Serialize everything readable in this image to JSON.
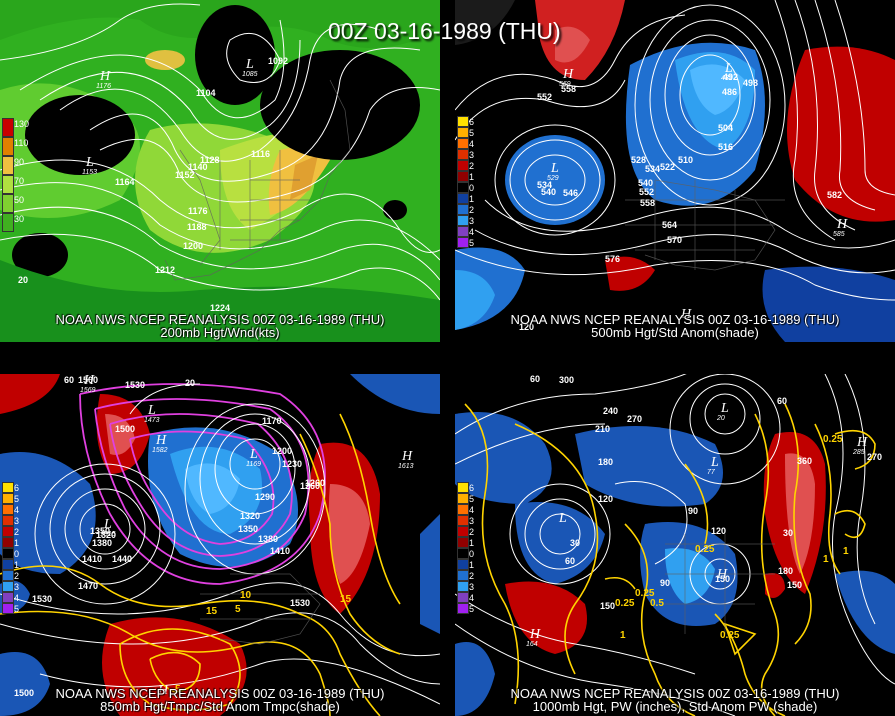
{
  "title": "00Z 03-16-1989 (THU)",
  "panels": [
    {
      "id": "p1",
      "header": "NOAA NWS NCEP REANALYSIS 00Z 03-16-1989 (THU)",
      "subtitle": "200mb Hgt/Wnd(kts)",
      "legend": [
        "130",
        "110",
        "90",
        "70",
        "50",
        "30"
      ],
      "legend_colors": [
        "#c80000",
        "#e08000",
        "#f0c040",
        "#b0e040",
        "#80d030",
        "#40b020"
      ],
      "contour_labels": [
        "1092",
        "1104",
        "1116",
        "1128",
        "1140",
        "1152",
        "1164",
        "1176",
        "1188",
        "1200",
        "1212",
        "1224",
        "20"
      ],
      "centers": [
        {
          "letter": "H",
          "value": "1176"
        },
        {
          "letter": "L",
          "value": "1153"
        },
        {
          "letter": "L",
          "value": "1085"
        }
      ]
    },
    {
      "id": "p2",
      "header": "NOAA NWS NCEP REANALYSIS 00Z 03-16-1989 (THU)",
      "subtitle": "500mb Hgt/Std Anom(shade)",
      "legend": [
        "6",
        "5",
        "4",
        "3",
        "2",
        "1",
        "0",
        "1",
        "2",
        "3",
        "4",
        "5"
      ],
      "legend_colors": [
        "#ffe000",
        "#ffb000",
        "#ff7000",
        "#e03000",
        "#c00000",
        "#900000",
        "#000000",
        "#1040a0",
        "#2070d0",
        "#30a0f0",
        "#8040c0",
        "#a020f0"
      ],
      "contour_labels": [
        "552",
        "558",
        "534",
        "540",
        "546",
        "528",
        "534",
        "522",
        "510",
        "504",
        "516",
        "492",
        "486",
        "498",
        "540",
        "552",
        "558",
        "564",
        "570",
        "576",
        "582",
        "120"
      ],
      "centers": [
        {
          "letter": "H",
          "value": "569"
        },
        {
          "letter": "L",
          "value": "529"
        },
        {
          "letter": "L",
          "value": "482"
        },
        {
          "letter": "H",
          "value": "585"
        },
        {
          "letter": "H",
          "value": ""
        }
      ]
    },
    {
      "id": "p3",
      "header": "NOAA NWS NCEP REANALYSIS 00Z 03-16-1989 (THU)",
      "subtitle": "850mb Hgt/Tmpc/Std Anom Tmpc(shade)",
      "legend": [
        "6",
        "5",
        "4",
        "3",
        "2",
        "1",
        "0",
        "1",
        "2",
        "3",
        "4",
        "5"
      ],
      "legend_colors": [
        "#ffe000",
        "#ffb000",
        "#ff7000",
        "#e03000",
        "#c00000",
        "#900000",
        "#000000",
        "#1040a0",
        "#2070d0",
        "#30a0f0",
        "#8040c0",
        "#a020f0"
      ],
      "contour_labels": [
        "60",
        "1500",
        "1530",
        "1500",
        "20",
        "1170",
        "1200",
        "1230",
        "1260",
        "1290",
        "1320",
        "1350",
        "1380",
        "1410",
        "1440",
        "1470",
        "1530",
        "1350",
        "1380",
        "1320",
        "1410",
        "10",
        "5",
        "15",
        "15",
        "5",
        "1500",
        "1530",
        "1260"
      ],
      "centers": [
        {
          "letter": "H",
          "value": "1569"
        },
        {
          "letter": "L",
          "value": "1473"
        },
        {
          "letter": "H",
          "value": "1582"
        },
        {
          "letter": "L",
          "value": "1169"
        },
        {
          "letter": "L",
          "value": "1315"
        },
        {
          "letter": "H",
          "value": "1613"
        },
        {
          "letter": "H",
          "value": ""
        }
      ]
    },
    {
      "id": "p4",
      "header": "NOAA NWS NCEP REANALYSIS 00Z 03-16-1989 (THU)",
      "subtitle": "1000mb Hgt, PW (inches), Std Anom PW (shade)",
      "legend": [
        "6",
        "5",
        "4",
        "3",
        "2",
        "1",
        "0",
        "1",
        "2",
        "3",
        "4",
        "5"
      ],
      "legend_colors": [
        "#ffe000",
        "#ffb000",
        "#ff7000",
        "#e03000",
        "#c00000",
        "#900000",
        "#000000",
        "#1040a0",
        "#2070d0",
        "#30a0f0",
        "#8040c0",
        "#a020f0"
      ],
      "contour_labels": [
        "60",
        "300",
        "240",
        "270",
        "210",
        "180",
        "120",
        "60",
        "30",
        "90",
        "120",
        "150",
        "180",
        "150",
        "0.25",
        "0.25",
        "0.25",
        "0.5",
        "1",
        "0.25",
        "150",
        "360",
        "270",
        "0.25",
        "1",
        "1",
        "60",
        "30",
        "90"
      ],
      "centers": [
        {
          "letter": "L",
          "value": "20"
        },
        {
          "letter": "L",
          "value": "77"
        },
        {
          "letter": "L",
          "value": ""
        },
        {
          "letter": "H",
          "value": "164"
        },
        {
          "letter": "H",
          "value": "285"
        },
        {
          "letter": "H",
          "value": ""
        }
      ]
    }
  ]
}
